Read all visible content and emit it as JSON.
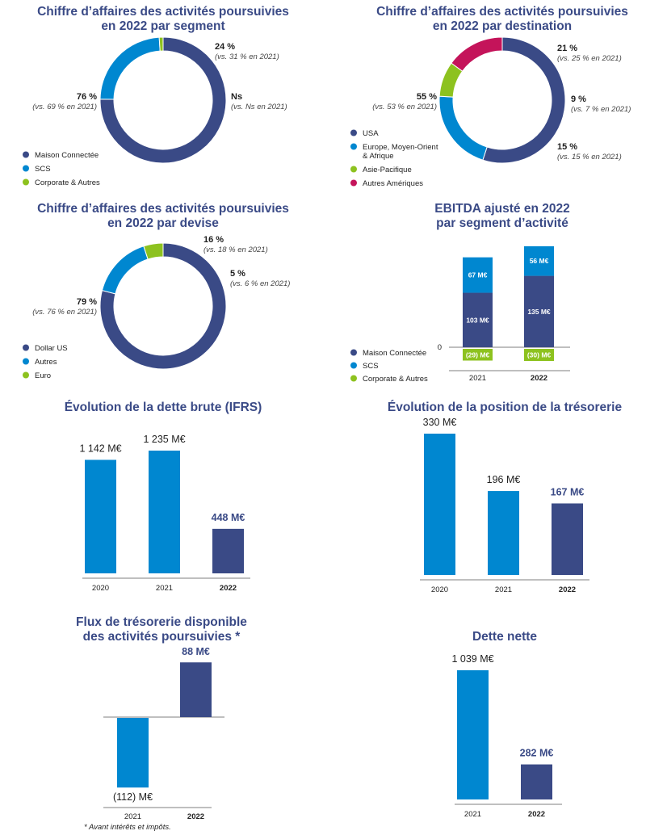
{
  "colors": {
    "navy": "#3a4a86",
    "blue": "#0087d0",
    "green": "#8dc21f",
    "magenta": "#c4145a",
    "title": "#3a4a86"
  },
  "footnote": "*   Avant intérêts et impôts.",
  "chart_data": [
    {
      "id": "segment",
      "type": "pie",
      "title_lines": [
        "Chiffre d’affaires des activités poursuivies",
        "en 2022 par segment"
      ],
      "slices": [
        {
          "name": "Maison Connectée",
          "value": 76,
          "label": "76 %",
          "vs": "(vs. 69 % en 2021)",
          "color": "#3a4a86"
        },
        {
          "name": "SCS",
          "value": 24,
          "label": "24 %",
          "vs": "(vs. 31 % en 2021)",
          "color": "#0087d0"
        },
        {
          "name": "Corporate & Autres",
          "value": 1,
          "label": "Ns",
          "vs": "(vs. Ns en 2021)",
          "color": "#8dc21f"
        }
      ],
      "legend": [
        {
          "label": "Maison Connectée",
          "color": "#3a4a86"
        },
        {
          "label": "SCS",
          "color": "#0087d0"
        },
        {
          "label": "Corporate & Autres",
          "color": "#8dc21f"
        }
      ]
    },
    {
      "id": "destination",
      "type": "pie",
      "title_lines": [
        "Chiffre d’affaires des activités poursuivies",
        "en 2022 par destination"
      ],
      "slices": [
        {
          "name": "USA",
          "value": 55,
          "label": "55 %",
          "vs": "(vs. 53 % en 2021)",
          "color": "#3a4a86"
        },
        {
          "name": "Europe, Moyen-Orient & Afrique",
          "value": 21,
          "label": "21 %",
          "vs": "(vs. 25 % en 2021)",
          "color": "#0087d0"
        },
        {
          "name": "Asie-Pacifique",
          "value": 9,
          "label": "9 %",
          "vs": "(vs. 7 % en 2021)",
          "color": "#8dc21f"
        },
        {
          "name": "Autres Amériques",
          "value": 15,
          "label": "15 %",
          "vs": "(vs. 15 % en 2021)",
          "color": "#c4145a"
        }
      ],
      "legend": [
        {
          "label": "USA",
          "color": "#3a4a86"
        },
        {
          "label": "Europe, Moyen-Orient",
          "label2": "& Afrique",
          "color": "#0087d0"
        },
        {
          "label": "Asie-Pacifique",
          "color": "#8dc21f"
        },
        {
          "label": "Autres Amériques",
          "color": "#c4145a"
        }
      ]
    },
    {
      "id": "devise",
      "type": "pie",
      "title_lines": [
        "Chiffre d’affaires des activités poursuivies",
        "en 2022 par devise"
      ],
      "slices": [
        {
          "name": "Dollar US",
          "value": 79,
          "label": "79 %",
          "vs": "(vs. 76 % en 2021)",
          "color": "#3a4a86"
        },
        {
          "name": "Autres",
          "value": 16,
          "label": "16 %",
          "vs": "(vs. 18 % en 2021)",
          "color": "#0087d0"
        },
        {
          "name": "Euro",
          "value": 5,
          "label": "5 %",
          "vs": "(vs. 6 % en 2021)",
          "color": "#8dc21f"
        }
      ],
      "legend": [
        {
          "label": "Dollar US",
          "color": "#3a4a86"
        },
        {
          "label": "Autres",
          "color": "#0087d0"
        },
        {
          "label": "Euro",
          "color": "#8dc21f"
        }
      ]
    },
    {
      "id": "ebitda",
      "type": "bar",
      "stacked": true,
      "title_lines": [
        "EBITDA  ajusté en 2022",
        "par segment d’activité"
      ],
      "categories": [
        "2021",
        "2022"
      ],
      "series": [
        {
          "name": "Maison Connectée",
          "values": [
            103,
            135
          ],
          "labels": [
            "103 M€",
            "135 M€"
          ],
          "color": "#3a4a86"
        },
        {
          "name": "SCS",
          "values": [
            67,
            56
          ],
          "labels": [
            "67 M€",
            "56 M€"
          ],
          "color": "#0087d0"
        },
        {
          "name": "Corporate & Autres",
          "values": [
            -29,
            -30
          ],
          "labels": [
            "(29) M€",
            "(30) M€"
          ],
          "color": "#8dc21f"
        }
      ],
      "zero_label": "0",
      "legend": [
        {
          "label": "Maison Connectée",
          "color": "#3a4a86"
        },
        {
          "label": "SCS",
          "color": "#0087d0"
        },
        {
          "label": "Corporate & Autres",
          "color": "#8dc21f"
        }
      ]
    },
    {
      "id": "dette_brute",
      "type": "bar",
      "title_lines": [
        "Évolution de la dette brute (IFRS)"
      ],
      "categories": [
        "2020",
        "2021",
        "2022"
      ],
      "values": [
        1142,
        1235,
        448
      ],
      "labels": [
        "1 142 M€",
        "1 235 M€",
        "448 M€"
      ],
      "ylim": [
        0,
        1235
      ]
    },
    {
      "id": "tresorerie",
      "type": "bar",
      "title_lines": [
        "Évolution de la position de la trésorerie"
      ],
      "categories": [
        "2020",
        "2021",
        "2022"
      ],
      "values": [
        330,
        196,
        167
      ],
      "labels": [
        "330 M€",
        "196 M€",
        "167 M€"
      ],
      "ylim": [
        0,
        330
      ]
    },
    {
      "id": "flux",
      "type": "bar",
      "title_lines": [
        "Flux de trésorerie disponible",
        "des activités poursuivies *"
      ],
      "categories": [
        "2021",
        "2022"
      ],
      "values": [
        -112,
        88
      ],
      "labels": [
        "(112) M€",
        "88 M€"
      ]
    },
    {
      "id": "dette_nette",
      "type": "bar",
      "title_lines": [
        "Dette nette"
      ],
      "categories": [
        "2021",
        "2022"
      ],
      "values": [
        1039,
        282
      ],
      "labels": [
        "1 039 M€",
        "282 M€"
      ],
      "ylim": [
        0,
        1039
      ]
    }
  ]
}
